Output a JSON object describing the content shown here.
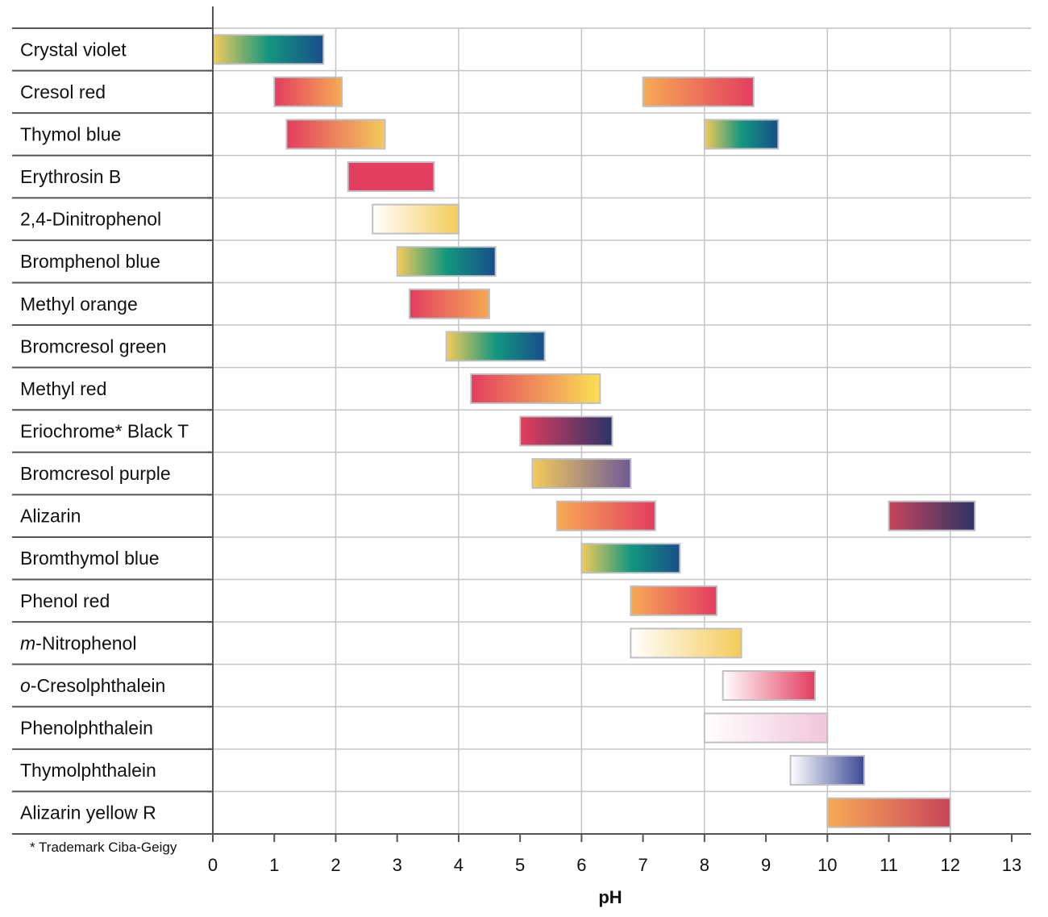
{
  "chart_data": {
    "type": "range-bar",
    "title": "",
    "xlabel": "pH",
    "ylabel": "",
    "xlim": [
      0,
      13
    ],
    "xticks": [
      "0",
      "1",
      "2",
      "3",
      "4",
      "5",
      "6",
      "7",
      "8",
      "9",
      "10",
      "11",
      "12",
      "13"
    ],
    "grid": "vertical lines every 2 pH units, horizontal row separators",
    "footnote": "* Trademark Ciba-Geigy",
    "colors": {
      "yellow": "#f4cb5a",
      "teal": "#13977f",
      "blue": "#174e8a",
      "red": "#e33d5f",
      "orange": "#f6aa55",
      "pink": "#f1c6da",
      "purple": "#6e5b95",
      "navy": "#2b3466",
      "white": "#ffffff",
      "darkred": "#c8455a",
      "indigo": "#3c4a94",
      "lightyellow": "#fbe055"
    },
    "indicators": [
      {
        "italic": "",
        "name": "Crystal violet",
        "ranges": [
          {
            "from": 0.0,
            "to": 1.8,
            "colors": [
              "yellow",
              "teal",
              "blue"
            ]
          }
        ]
      },
      {
        "italic": "",
        "name": "Cresol red",
        "ranges": [
          {
            "from": 1.0,
            "to": 2.1,
            "colors": [
              "red",
              "orange"
            ]
          },
          {
            "from": 7.0,
            "to": 8.8,
            "colors": [
              "orange",
              "red"
            ]
          }
        ]
      },
      {
        "italic": "",
        "name": "Thymol blue",
        "ranges": [
          {
            "from": 1.2,
            "to": 2.8,
            "colors": [
              "red",
              "yellow"
            ]
          },
          {
            "from": 8.0,
            "to": 9.2,
            "colors": [
              "yellow",
              "teal",
              "blue"
            ]
          }
        ]
      },
      {
        "italic": "",
        "name": "Erythrosin B",
        "ranges": [
          {
            "from": 2.2,
            "to": 3.6,
            "colors": [
              "red",
              "red"
            ]
          }
        ]
      },
      {
        "italic": "",
        "name": "2,4-Dinitrophenol",
        "ranges": [
          {
            "from": 2.6,
            "to": 4.0,
            "colors": [
              "white",
              "yellow"
            ]
          }
        ]
      },
      {
        "italic": "",
        "name": "Bromphenol blue",
        "ranges": [
          {
            "from": 3.0,
            "to": 4.6,
            "colors": [
              "yellow",
              "teal",
              "blue"
            ]
          }
        ]
      },
      {
        "italic": "",
        "name": "Methyl orange",
        "ranges": [
          {
            "from": 3.2,
            "to": 4.5,
            "colors": [
              "red",
              "orange"
            ]
          }
        ]
      },
      {
        "italic": "",
        "name": "Bromcresol green",
        "ranges": [
          {
            "from": 3.8,
            "to": 5.4,
            "colors": [
              "yellow",
              "teal",
              "blue"
            ]
          }
        ]
      },
      {
        "italic": "",
        "name": "Methyl red",
        "ranges": [
          {
            "from": 4.2,
            "to": 6.3,
            "colors": [
              "red",
              "lightyellow"
            ]
          }
        ]
      },
      {
        "italic": "",
        "name": "Eriochrome* Black T",
        "ranges": [
          {
            "from": 5.0,
            "to": 6.5,
            "colors": [
              "red",
              "navy"
            ]
          }
        ]
      },
      {
        "italic": "",
        "name": "Bromcresol purple",
        "ranges": [
          {
            "from": 5.2,
            "to": 6.8,
            "colors": [
              "yellow",
              "purple"
            ]
          }
        ]
      },
      {
        "italic": "",
        "name": "Alizarin",
        "ranges": [
          {
            "from": 5.6,
            "to": 7.2,
            "colors": [
              "orange",
              "red"
            ]
          },
          {
            "from": 11.0,
            "to": 12.4,
            "colors": [
              "darkred",
              "navy"
            ]
          }
        ]
      },
      {
        "italic": "",
        "name": "Bromthymol blue",
        "ranges": [
          {
            "from": 6.0,
            "to": 7.6,
            "colors": [
              "yellow",
              "teal",
              "blue"
            ]
          }
        ]
      },
      {
        "italic": "",
        "name": "Phenol red",
        "ranges": [
          {
            "from": 6.8,
            "to": 8.2,
            "colors": [
              "orange",
              "red"
            ]
          }
        ]
      },
      {
        "italic": "m",
        "name": "-Nitrophenol",
        "ranges": [
          {
            "from": 6.8,
            "to": 8.6,
            "colors": [
              "white",
              "yellow"
            ]
          }
        ]
      },
      {
        "italic": "o",
        "name": "-Cresolphthalein",
        "ranges": [
          {
            "from": 8.3,
            "to": 9.8,
            "colors": [
              "white",
              "red"
            ]
          }
        ]
      },
      {
        "italic": "",
        "name": "Phenolphthalein",
        "ranges": [
          {
            "from": 8.0,
            "to": 10.0,
            "colors": [
              "white",
              "pink"
            ]
          }
        ]
      },
      {
        "italic": "",
        "name": "Thymolphthalein",
        "ranges": [
          {
            "from": 9.4,
            "to": 10.6,
            "colors": [
              "white",
              "indigo"
            ]
          }
        ]
      },
      {
        "italic": "",
        "name": "Alizarin yellow R",
        "ranges": [
          {
            "from": 10.0,
            "to": 12.0,
            "colors": [
              "orange",
              "darkred"
            ]
          }
        ]
      }
    ]
  }
}
